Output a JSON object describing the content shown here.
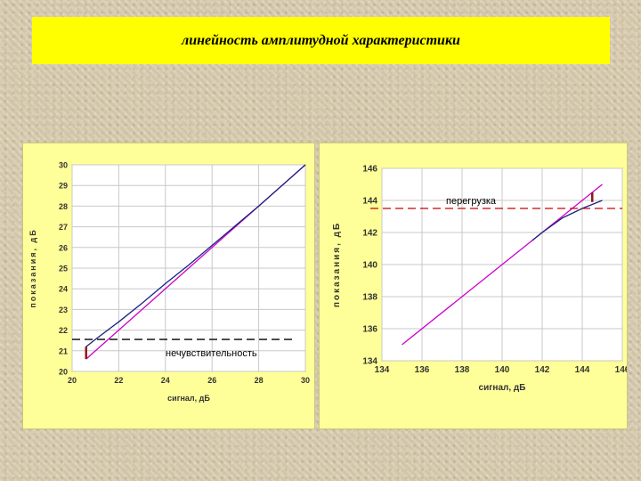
{
  "title": "линейность амплитудной характеристики",
  "chart_data": [
    {
      "type": "line",
      "xlabel": "сигнал, дБ",
      "ylabel": "показания, дБ",
      "xlim": [
        20,
        30
      ],
      "ylim": [
        20,
        30
      ],
      "xticks": [
        20,
        22,
        24,
        26,
        28,
        30
      ],
      "yticks": [
        20,
        21,
        22,
        23,
        24,
        25,
        26,
        27,
        28,
        29,
        30
      ],
      "grid": true,
      "series": [
        {
          "color": "#cc00cc",
          "x": [
            20.6,
            30
          ],
          "y": [
            20.6,
            30
          ]
        },
        {
          "color": "#1a237e",
          "x": [
            20.6,
            21,
            22,
            23,
            24,
            25,
            26,
            27,
            28,
            29,
            30
          ],
          "y": [
            21.2,
            21.55,
            22.4,
            23.3,
            24.25,
            25.15,
            26.1,
            27.05,
            28.0,
            29.0,
            30.0
          ]
        }
      ],
      "threshold": {
        "y": 21.55,
        "label": "нечувствительность",
        "color": "#000000"
      },
      "marker_color": "#8b1a1a",
      "marker": {
        "x": 20.6,
        "y_from": 20.6,
        "y_to": 21.2
      }
    },
    {
      "type": "line",
      "xlabel": "сигнал, дБ",
      "ylabel": "показания, дБ",
      "xlim": [
        134,
        146
      ],
      "ylim": [
        134,
        146
      ],
      "xticks": [
        134,
        136,
        138,
        140,
        142,
        144,
        146
      ],
      "yticks": [
        134,
        136,
        138,
        140,
        142,
        144,
        146
      ],
      "grid": true,
      "series": [
        {
          "color": "#cc00cc",
          "x": [
            135,
            145
          ],
          "y": [
            135,
            145
          ]
        },
        {
          "color": "#1a237e",
          "x": [
            141.5,
            142,
            143,
            144,
            145
          ],
          "y": [
            141.5,
            142,
            142.9,
            143.5,
            144.0
          ]
        }
      ],
      "threshold": {
        "y": 143.5,
        "label": "перегрузка",
        "color": "#cc0000"
      },
      "marker_color": "#8b1a1a",
      "marker": {
        "x": 144.5,
        "y_from": 143.9,
        "y_to": 144.5
      }
    }
  ]
}
